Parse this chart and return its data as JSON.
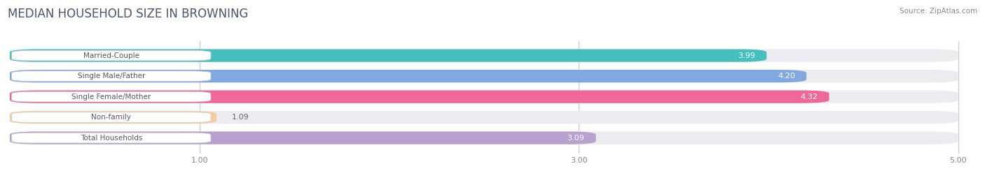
{
  "title": "MEDIAN HOUSEHOLD SIZE IN BROWNING",
  "source": "Source: ZipAtlas.com",
  "categories": [
    "Married-Couple",
    "Single Male/Father",
    "Single Female/Mother",
    "Non-family",
    "Total Households"
  ],
  "values": [
    3.99,
    4.2,
    4.32,
    1.09,
    3.09
  ],
  "colors": [
    "#45bfbf",
    "#82a8e0",
    "#f06898",
    "#f5cc9e",
    "#b8a0d0"
  ],
  "xlim_min": 0,
  "xlim_max": 5.0,
  "xticks": [
    1.0,
    3.0,
    5.0
  ],
  "bar_height": 0.62,
  "background_color": "#ffffff",
  "bar_bg_color": "#ebebf0",
  "title_fontsize": 12,
  "label_fontsize": 7.5,
  "value_fontsize": 8,
  "source_fontsize": 7.5,
  "title_color": "#4a5568",
  "source_color": "#888888",
  "label_box_color": "#ffffff",
  "label_text_color": "#555566",
  "value_color_inside": "#ffffff",
  "value_color_outside": "#666666",
  "grid_color": "#ccccdd"
}
